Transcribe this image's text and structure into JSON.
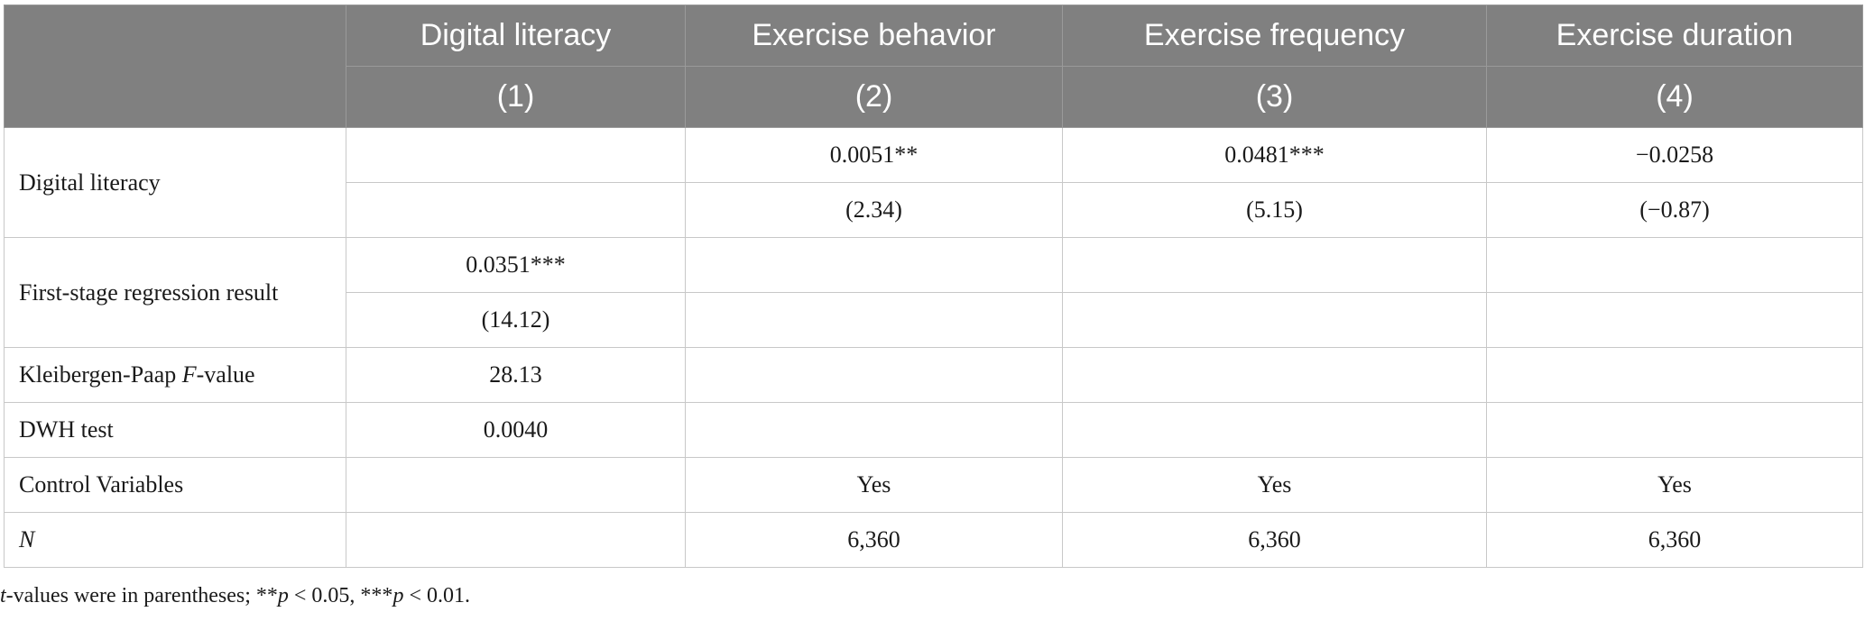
{
  "header": {
    "columns": [
      "Digital literacy",
      "Exercise behavior",
      "Exercise frequency",
      "Exercise duration"
    ],
    "numbers": [
      "(1)",
      "(2)",
      "(3)",
      "(4)"
    ]
  },
  "rows": {
    "digital_literacy": {
      "label": "Digital literacy",
      "coef": [
        "",
        "0.0051**",
        "0.0481***",
        "−0.0258"
      ],
      "tval": [
        "",
        "(2.34)",
        "(5.15)",
        "(−0.87)"
      ]
    },
    "first_stage": {
      "label": "First-stage regression result",
      "coef": [
        "0.0351***",
        "",
        "",
        ""
      ],
      "tval": [
        "(14.12)",
        "",
        "",
        ""
      ]
    },
    "kp": {
      "label_pre": "Kleibergen-Paap ",
      "label_ital": "F",
      "label_post": "-value",
      "values": [
        "28.13",
        "",
        "",
        ""
      ]
    },
    "dwh": {
      "label": "DWH test",
      "values": [
        "0.0040",
        "",
        "",
        ""
      ]
    },
    "controls": {
      "label": "Control Variables",
      "values": [
        "",
        "Yes",
        "Yes",
        "Yes"
      ]
    },
    "n": {
      "label": "N",
      "values": [
        "",
        "6,360",
        "6,360",
        "6,360"
      ]
    }
  },
  "footnote": {
    "t_ital": "t",
    "part1": "-values were in parentheses; **",
    "p1_ital": "p",
    "part2": " < 0.05, ***",
    "p2_ital": "p",
    "part3": " < 0.01."
  }
}
